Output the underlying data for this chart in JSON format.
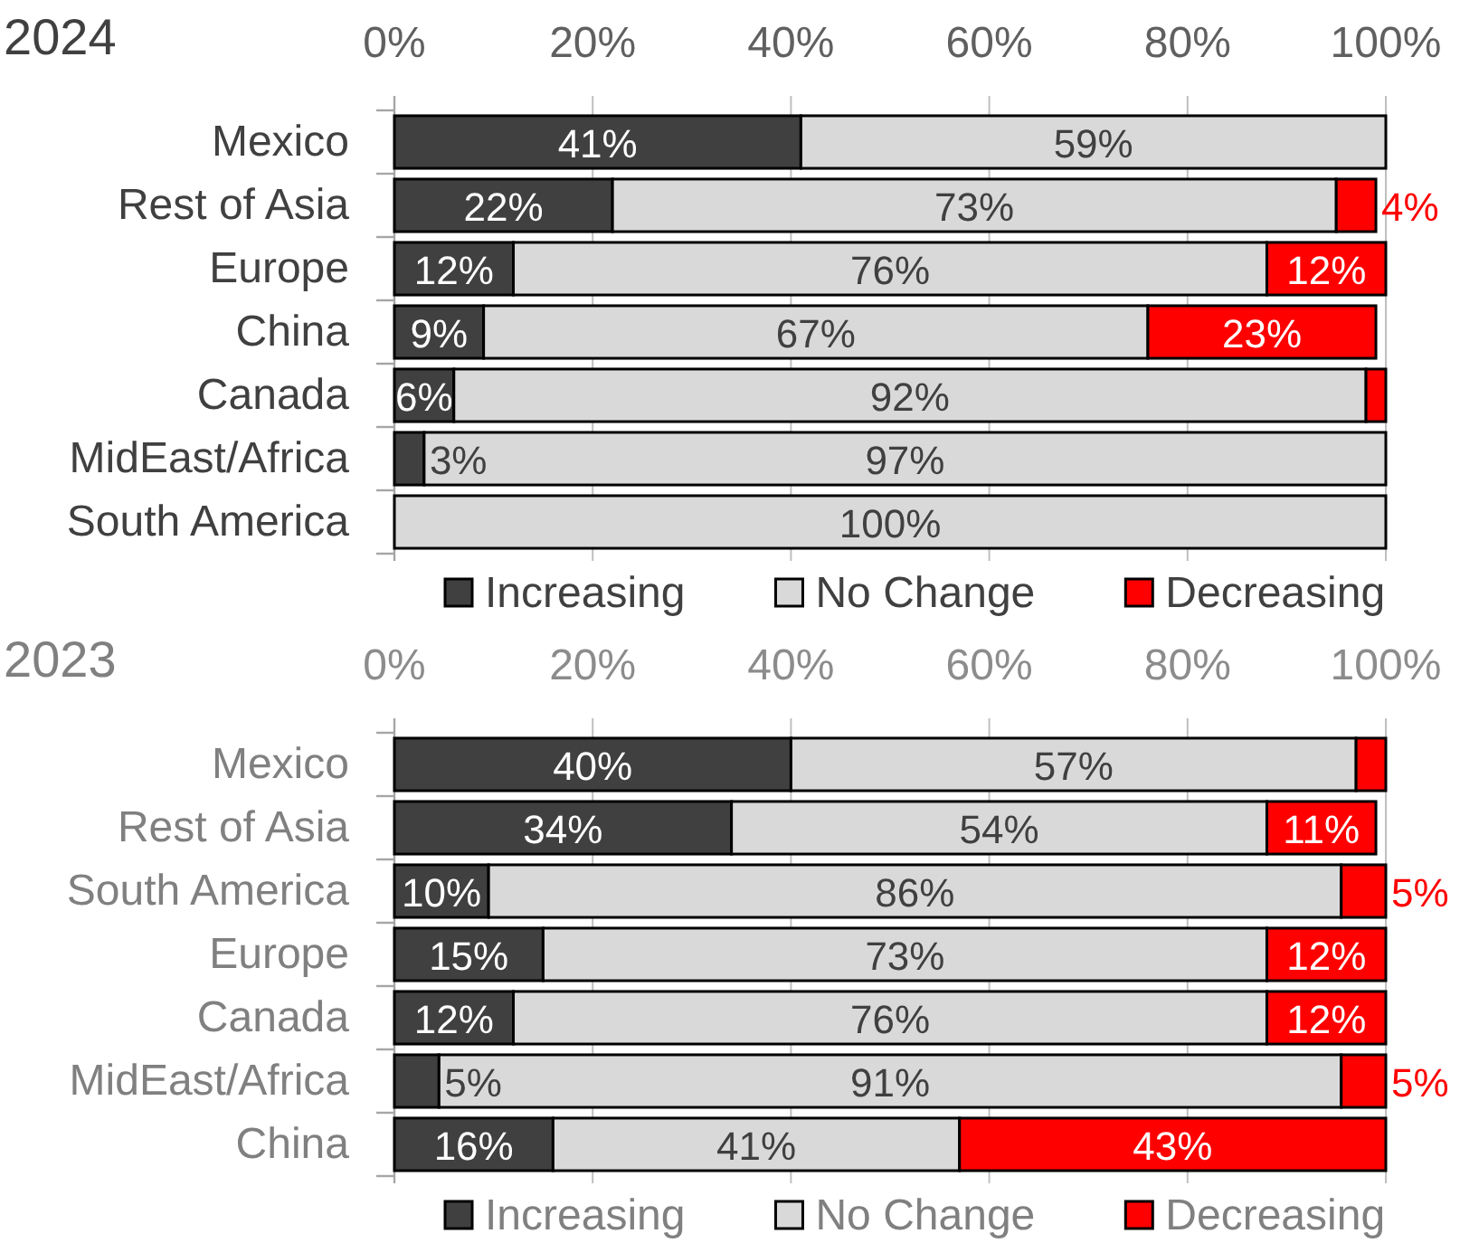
{
  "chart_data": [
    {
      "type": "bar",
      "orientation": "horizontal",
      "stacked": true,
      "title": "2024",
      "categories": [
        "Mexico",
        "Rest of Asia",
        "Europe",
        "China",
        "Canada",
        "MidEast/Africa",
        "South America"
      ],
      "series": [
        {
          "name": "Increasing",
          "color": "#404040",
          "values": [
            41,
            22,
            12,
            9,
            6,
            3,
            null
          ],
          "value_labels": [
            "41%",
            "22%",
            "12%",
            "9%",
            "6%",
            "3%",
            null
          ]
        },
        {
          "name": "No Change",
          "color": "#d9d9d9",
          "values": [
            59,
            73,
            76,
            67,
            92,
            97,
            100
          ],
          "value_labels": [
            "59%",
            "73%",
            "76%",
            "67%",
            "92%",
            "97%",
            "100%"
          ]
        },
        {
          "name": "Decreasing",
          "color": "#ff0000",
          "values": [
            null,
            4,
            12,
            23,
            2,
            null,
            null
          ],
          "value_labels": [
            null,
            "4%",
            "12%",
            "23%",
            null,
            null,
            null
          ]
        }
      ],
      "xlim": [
        0,
        100
      ],
      "xticks": [
        {
          "value": 0,
          "label": "0%"
        },
        {
          "value": 20,
          "label": "20%"
        },
        {
          "value": 40,
          "label": "40%"
        },
        {
          "value": 60,
          "label": "60%"
        },
        {
          "value": 80,
          "label": "80%"
        },
        {
          "value": 100,
          "label": "100%"
        }
      ],
      "grid": "x",
      "legend": "bottom"
    },
    {
      "type": "bar",
      "orientation": "horizontal",
      "stacked": true,
      "title": "2023",
      "categories": [
        "Mexico",
        "Rest of Asia",
        "South America",
        "Europe",
        "Canada",
        "MidEast/Africa",
        "China"
      ],
      "series": [
        {
          "name": "Increasing",
          "color": "#404040",
          "values": [
            40,
            34,
            9.5,
            15,
            12,
            4.5,
            16
          ],
          "value_labels": [
            "40%",
            "34%",
            "10%",
            "15%",
            "12%",
            "5%",
            "16%"
          ]
        },
        {
          "name": "No Change",
          "color": "#d9d9d9",
          "values": [
            57,
            54,
            86,
            73,
            76,
            91,
            41
          ],
          "value_labels": [
            "57%",
            "54%",
            "86%",
            "73%",
            "76%",
            "91%",
            "41%"
          ]
        },
        {
          "name": "Decreasing",
          "color": "#ff0000",
          "values": [
            3,
            11,
            4.5,
            12,
            12,
            4.5,
            43
          ],
          "value_labels": [
            null,
            "11%",
            "5%",
            "12%",
            "12%",
            "5%",
            "43%"
          ]
        }
      ],
      "xlim": [
        0,
        100
      ],
      "xticks": [
        {
          "value": 0,
          "label": "0%"
        },
        {
          "value": 20,
          "label": "20%"
        },
        {
          "value": 40,
          "label": "40%"
        },
        {
          "value": 60,
          "label": "60%"
        },
        {
          "value": 80,
          "label": "80%"
        },
        {
          "value": 100,
          "label": "100%"
        }
      ],
      "grid": "x",
      "legend": "bottom"
    }
  ]
}
